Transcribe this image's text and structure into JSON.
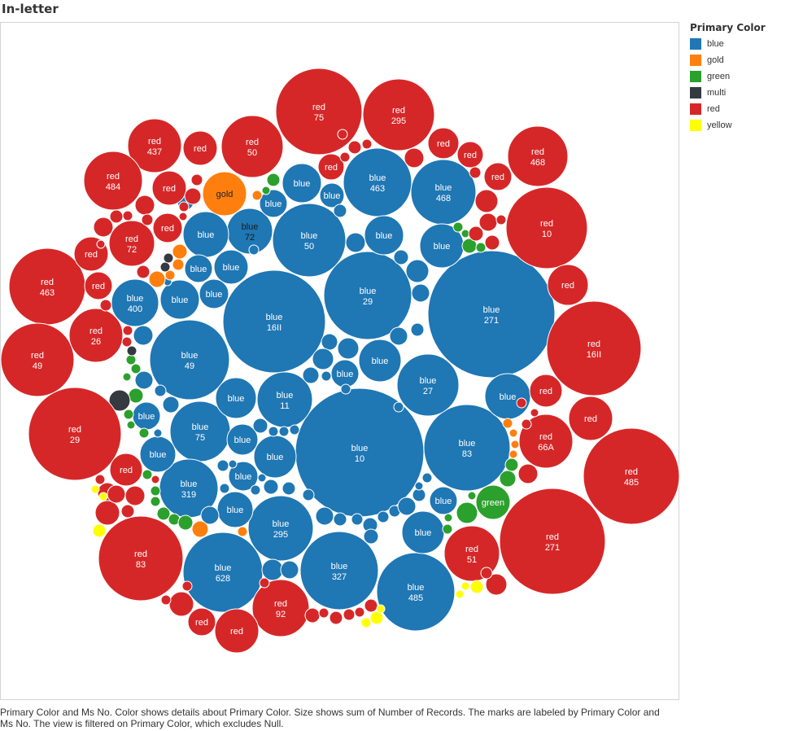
{
  "title": "In-letter",
  "legend": {
    "title": "Primary Color",
    "items": [
      {
        "label": "blue",
        "color": "#1f77b4"
      },
      {
        "label": "gold",
        "color": "#ff7f0e"
      },
      {
        "label": "green",
        "color": "#2ca02c"
      },
      {
        "label": "multi",
        "color": "#343a40"
      },
      {
        "label": "red",
        "color": "#d62728"
      },
      {
        "label": "yellow",
        "color": "#ffff00"
      }
    ]
  },
  "caption": "Primary Color and Ms No.  Color shows details about Primary Color.  Size shows sum of Number of Records.  The marks are labeled by Primary Color and Ms No. The view is filtered on Primary Color, which excludes Null.",
  "chart_data": {
    "type": "packed-bubble",
    "colors": {
      "blue": "#1f77b4",
      "gold": "#ff7f0e",
      "green": "#2ca02c",
      "multi": "#343a40",
      "red": "#d62728",
      "yellow": "#ffff00"
    },
    "labeled_bubbles": [
      {
        "color": "blue",
        "ms": "10",
        "records": 100
      },
      {
        "color": "blue",
        "ms": "271",
        "records": 94
      },
      {
        "color": "blue",
        "ms": "16II",
        "records": 67
      },
      {
        "color": "blue",
        "ms": "29",
        "records": 47
      },
      {
        "color": "blue",
        "ms": "49",
        "records": 40
      },
      {
        "color": "blue",
        "ms": "628",
        "records": 39
      },
      {
        "color": "blue",
        "ms": "327",
        "records": 38
      },
      {
        "color": "blue",
        "ms": "485",
        "records": 37
      },
      {
        "color": "blue",
        "ms": "83",
        "records": 43
      },
      {
        "color": "blue",
        "ms": "50",
        "records": 33
      },
      {
        "color": "blue",
        "ms": "463",
        "records": 27
      },
      {
        "color": "blue",
        "ms": "27",
        "records": 23
      },
      {
        "color": "blue",
        "ms": "295",
        "records": 25
      },
      {
        "color": "blue",
        "ms": "468",
        "records": 25
      },
      {
        "color": "blue",
        "ms": "11",
        "records": 18
      },
      {
        "color": "blue",
        "ms": "75",
        "records": 22
      },
      {
        "color": "blue",
        "ms": "319",
        "records": 20
      },
      {
        "color": "blue",
        "ms": "400",
        "records": 14
      },
      {
        "color": "blue",
        "ms": "72",
        "records": 12
      },
      {
        "color": "blue",
        "ms": "",
        "records": 9
      },
      {
        "color": "blue",
        "ms": "",
        "records": 10
      },
      {
        "color": "blue",
        "ms": "",
        "records": 11
      },
      {
        "color": "blue",
        "ms": "",
        "records": 14
      },
      {
        "color": "blue",
        "ms": "",
        "records": 16
      },
      {
        "color": "gold",
        "ms": "",
        "records": 12
      },
      {
        "color": "green",
        "ms": "",
        "records": 7
      },
      {
        "color": "red",
        "ms": "271",
        "records": 70
      },
      {
        "color": "red",
        "ms": "485",
        "records": 55
      },
      {
        "color": "red",
        "ms": "29",
        "records": 53
      },
      {
        "color": "red",
        "ms": "16II",
        "records": 55
      },
      {
        "color": "red",
        "ms": "83",
        "records": 42
      },
      {
        "color": "red",
        "ms": "75",
        "records": 44
      },
      {
        "color": "red",
        "ms": "463",
        "records": 33
      },
      {
        "color": "red",
        "ms": "49",
        "records": 31
      },
      {
        "color": "red",
        "ms": "10",
        "records": 40
      },
      {
        "color": "red",
        "ms": "295",
        "records": 31
      },
      {
        "color": "red",
        "ms": "468",
        "records": 22
      },
      {
        "color": "red",
        "ms": "437",
        "records": 18
      },
      {
        "color": "red",
        "ms": "50",
        "records": 24
      },
      {
        "color": "red",
        "ms": "484",
        "records": 18
      },
      {
        "color": "red",
        "ms": "72",
        "records": 13
      },
      {
        "color": "red",
        "ms": "26",
        "records": 18
      },
      {
        "color": "red",
        "ms": "92",
        "records": 20
      },
      {
        "color": "red",
        "ms": "66A",
        "records": 18
      },
      {
        "color": "red",
        "ms": "51",
        "records": 19
      },
      {
        "color": "red",
        "ms": "",
        "records": 12
      },
      {
        "color": "red",
        "ms": "",
        "records": 6
      }
    ],
    "label_format": "Primary Color / Ms No."
  }
}
